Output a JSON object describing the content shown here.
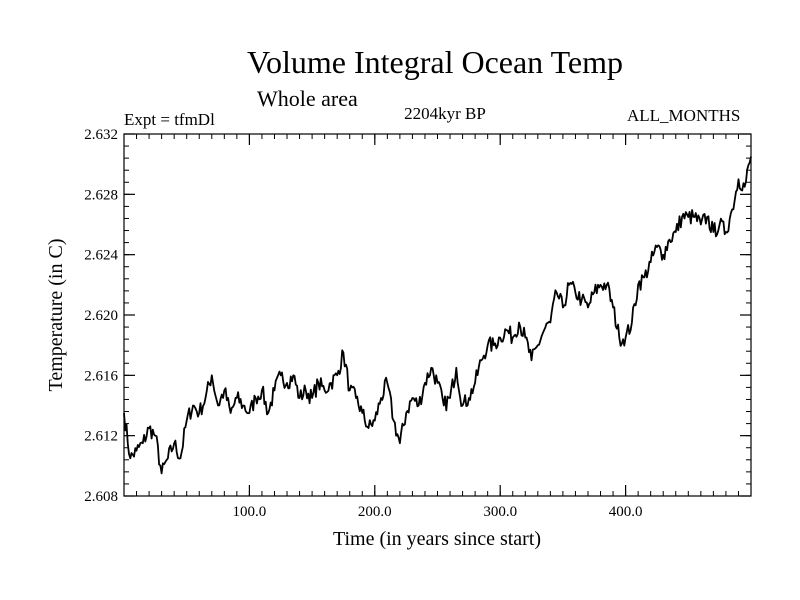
{
  "chart_data": {
    "type": "line",
    "title": "Volume Integral Ocean Temp",
    "subtitle": "Whole area",
    "left_label": "Expt = tfmDl",
    "center_label": "2204kyr BP",
    "right_label": "ALL_MONTHS",
    "xlabel": "Time (in years since start)",
    "ylabel": "Temperature (in C)",
    "xlim": [
      0,
      500
    ],
    "ylim": [
      2.608,
      2.632
    ],
    "x_ticks": [
      100,
      200,
      300,
      400
    ],
    "x_tick_labels": [
      "100.0",
      "200.0",
      "300.0",
      "400.0"
    ],
    "y_ticks": [
      2.608,
      2.612,
      2.616,
      2.62,
      2.624,
      2.628,
      2.632
    ],
    "y_tick_labels": [
      "2.608",
      "2.612",
      "2.616",
      "2.620",
      "2.624",
      "2.628",
      "2.632"
    ],
    "grid": false,
    "series": [
      {
        "name": "Volume Integral Ocean Temp",
        "color": "#000000",
        "x": [
          0,
          5,
          10,
          15,
          20,
          25,
          30,
          35,
          40,
          45,
          50,
          55,
          60,
          65,
          70,
          75,
          80,
          85,
          90,
          95,
          100,
          105,
          110,
          115,
          120,
          125,
          130,
          135,
          140,
          145,
          150,
          155,
          160,
          165,
          170,
          175,
          180,
          185,
          190,
          195,
          200,
          205,
          210,
          215,
          220,
          225,
          230,
          235,
          240,
          245,
          250,
          255,
          260,
          265,
          270,
          275,
          280,
          285,
          290,
          295,
          300,
          305,
          310,
          315,
          320,
          325,
          330,
          335,
          340,
          345,
          350,
          355,
          360,
          365,
          370,
          375,
          380,
          385,
          390,
          395,
          400,
          405,
          410,
          415,
          420,
          425,
          430,
          435,
          440,
          445,
          450,
          455,
          460,
          465,
          470,
          475,
          480,
          485,
          490,
          495,
          500
        ],
        "values": [
          2.6135,
          2.6105,
          2.611,
          2.6115,
          2.6125,
          2.612,
          2.6095,
          2.6105,
          2.6115,
          2.6105,
          2.613,
          2.614,
          2.6135,
          2.6145,
          2.616,
          2.614,
          2.615,
          2.6135,
          2.6145,
          2.614,
          2.6135,
          2.6145,
          2.615,
          2.6135,
          2.615,
          2.616,
          2.6155,
          2.616,
          2.6145,
          2.615,
          2.6145,
          2.6155,
          2.615,
          2.6155,
          2.616,
          2.6175,
          2.615,
          2.6145,
          2.6135,
          2.6125,
          2.613,
          2.6145,
          2.6155,
          2.613,
          2.6115,
          2.6135,
          2.6145,
          2.614,
          2.6155,
          2.6165,
          2.6155,
          2.614,
          2.6145,
          2.6165,
          2.614,
          2.6145,
          2.6155,
          2.617,
          2.618,
          2.618,
          2.6185,
          2.619,
          2.6185,
          2.6195,
          2.6185,
          2.617,
          2.618,
          2.619,
          2.6195,
          2.6215,
          2.6205,
          2.622,
          2.6215,
          2.621,
          2.6205,
          2.6215,
          2.622,
          2.622,
          2.6205,
          2.6185,
          2.6185,
          2.6195,
          2.622,
          2.6225,
          2.6235,
          2.6245,
          2.624,
          2.625,
          2.6255,
          2.6265,
          2.6265,
          2.6265,
          2.626,
          2.6265,
          2.6255,
          2.626,
          2.6255,
          2.627,
          2.629,
          2.6285,
          2.6305
        ]
      }
    ]
  }
}
